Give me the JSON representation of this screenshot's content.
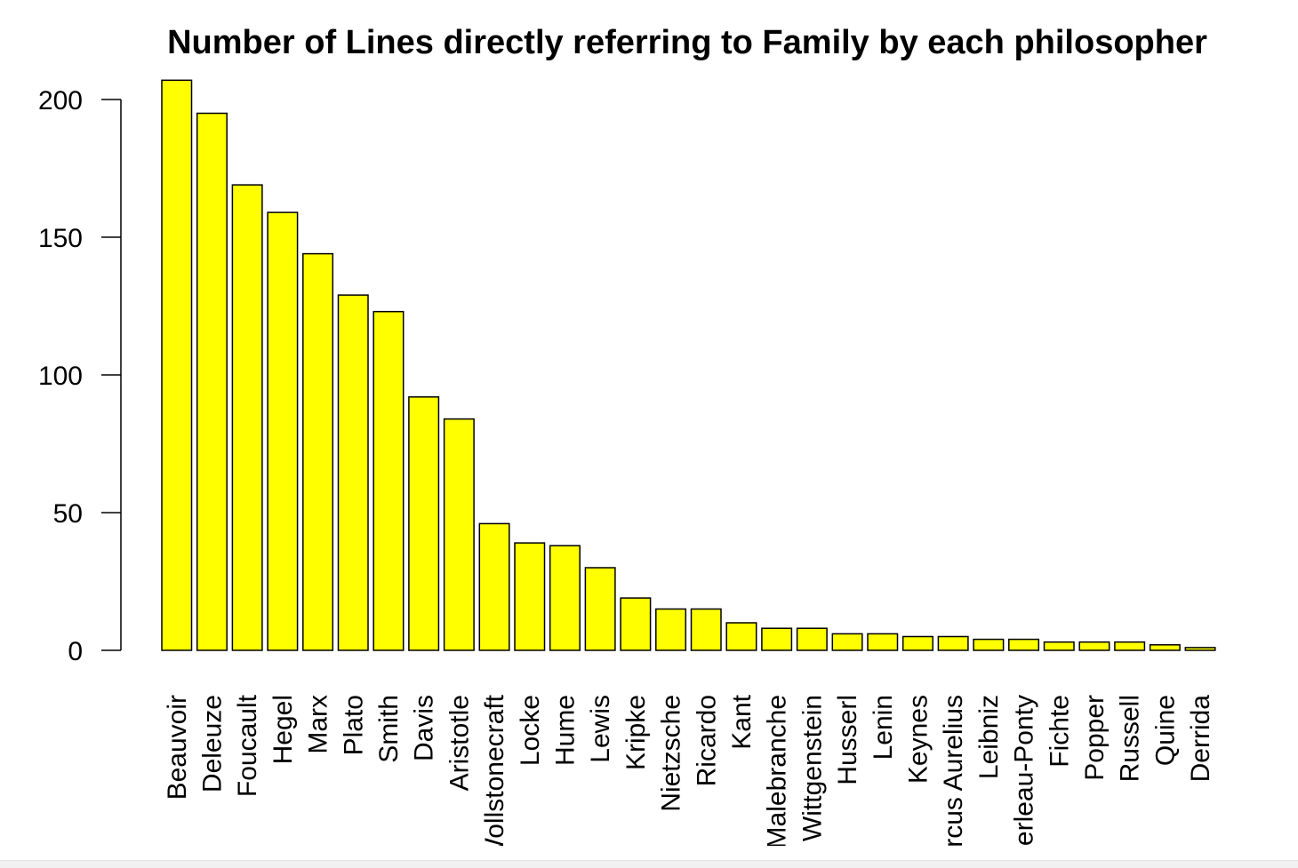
{
  "chart_data": {
    "type": "bar",
    "title": "Number of Lines directly referring to Family by each philosopher",
    "xlabel": "",
    "ylabel": "",
    "ylim": [
      0,
      210
    ],
    "yticks": [
      0,
      50,
      100,
      150,
      200
    ],
    "bar_color": "#ffff00",
    "bar_border": "#000000",
    "grid": false,
    "categories": [
      "Beauvoir",
      "Deleuze",
      "Foucault",
      "Hegel",
      "Marx",
      "Plato",
      "Smith",
      "Davis",
      "Aristotle",
      "Wollstonecraft",
      "Locke",
      "Hume",
      "Lewis",
      "Kripke",
      "Nietzsche",
      "Ricardo",
      "Kant",
      "Malebranche",
      "Wittgenstein",
      "Husserl",
      "Lenin",
      "Keynes",
      "Marcus Aurelius",
      "Leibniz",
      "Merleau-Ponty",
      "Fichte",
      "Popper",
      "Russell",
      "Quine",
      "Derrida"
    ],
    "values": [
      207,
      195,
      169,
      159,
      144,
      129,
      123,
      92,
      84,
      46,
      39,
      38,
      30,
      19,
      15,
      15,
      10,
      8,
      8,
      6,
      6,
      5,
      5,
      4,
      4,
      3,
      3,
      3,
      2,
      1
    ]
  }
}
